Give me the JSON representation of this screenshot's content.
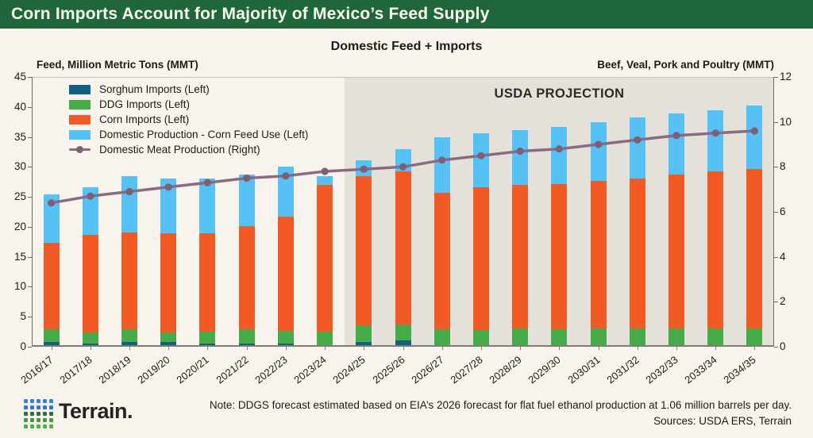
{
  "header": {
    "title": "Corn Imports Account for Majority of Mexico’s Feed Supply"
  },
  "chart": {
    "subtitle": "Domestic Feed + Imports",
    "left_axis_title": "Feed, Million Metric Tons (MMT)",
    "right_axis_title": "Beef, Veal, Pork and Poultry (MMT)",
    "projection_label": "USDA PROJECTION"
  },
  "chart_data": {
    "type": "bar",
    "stacked": true,
    "grid": false,
    "legend_position": "upper-left",
    "categories": [
      "2016/17",
      "2017/18",
      "2018/19",
      "2019/20",
      "2020/21",
      "2021/22",
      "2022/23",
      "2023/24",
      "2024/25",
      "2025/26",
      "2026/27",
      "2027/28",
      "2028/29",
      "2029/30",
      "2030/31",
      "2031/32",
      "2032/33",
      "2033/34",
      "2034/35"
    ],
    "series": [
      {
        "name": "Sorghum Imports (Left)",
        "type": "bar",
        "axis": "left",
        "color": "#11607f",
        "values": [
          0.8,
          0.5,
          0.8,
          0.8,
          0.5,
          0.5,
          0.5,
          0.2,
          0.8,
          1.0,
          0.3,
          0.3,
          0.3,
          0.3,
          0.3,
          0.3,
          0.3,
          0.3,
          0.3
        ]
      },
      {
        "name": "DDG Imports (Left)",
        "type": "bar",
        "axis": "left",
        "color": "#45ac49",
        "values": [
          2.1,
          1.9,
          2.1,
          1.6,
          2.0,
          2.4,
          2.2,
          2.3,
          2.8,
          2.7,
          2.6,
          2.5,
          2.7,
          2.6,
          2.7,
          2.7,
          2.7,
          2.8,
          2.8
        ]
      },
      {
        "name": "Corn Imports (Left)",
        "type": "bar",
        "axis": "left",
        "color": "#f15a22",
        "values": [
          14.4,
          16.2,
          16.1,
          16.5,
          16.4,
          17.2,
          19.0,
          24.5,
          24.9,
          25.6,
          22.8,
          23.8,
          24.0,
          24.3,
          24.6,
          25.1,
          25.7,
          26.1,
          26.5
        ]
      },
      {
        "name": "Domestic Production - Corn Feed Use (Left)",
        "type": "bar",
        "axis": "left",
        "color": "#56c1f5",
        "values": [
          8.1,
          8.0,
          9.5,
          9.2,
          9.2,
          8.6,
          8.3,
          1.4,
          2.6,
          3.6,
          9.3,
          9.0,
          9.2,
          9.5,
          9.9,
          10.1,
          10.2,
          10.3,
          10.6
        ]
      },
      {
        "name": "Domestic Meat Production (Right)",
        "type": "line",
        "axis": "right",
        "color": "#8b6b81",
        "marker_color": "#7e5f73",
        "values": [
          6.4,
          6.7,
          6.9,
          7.1,
          7.3,
          7.5,
          7.6,
          7.8,
          7.9,
          8.0,
          8.3,
          8.5,
          8.7,
          8.8,
          9.0,
          9.2,
          9.4,
          9.5,
          9.6
        ]
      }
    ],
    "left_axis": {
      "min": 0,
      "max": 45,
      "ticks": [
        0,
        5,
        10,
        15,
        20,
        25,
        30,
        35,
        40,
        45
      ]
    },
    "right_axis": {
      "min": 0,
      "max": 12,
      "ticks": [
        0,
        2,
        4,
        6,
        8,
        10,
        12
      ]
    },
    "projection_start_category": "2024/25"
  },
  "footer": {
    "note": "Note: DDGS forecast estimated based on EIA’s 2026 forecast for flat fuel ethanol production at 1.06 million barrels per day.",
    "sources": "Sources: USDA ERS, Terrain",
    "logo_text": "Terrain.",
    "logo_row_colors": [
      "#3485dd",
      "#2e79d2",
      "#2f7040",
      "#3f9d40",
      "#4fb14a"
    ]
  },
  "colors": {
    "header_bg": "#20663b",
    "page_bg": "#f8f3ec",
    "projection_bg": "#e4e1db",
    "text": "#1e1c18"
  }
}
